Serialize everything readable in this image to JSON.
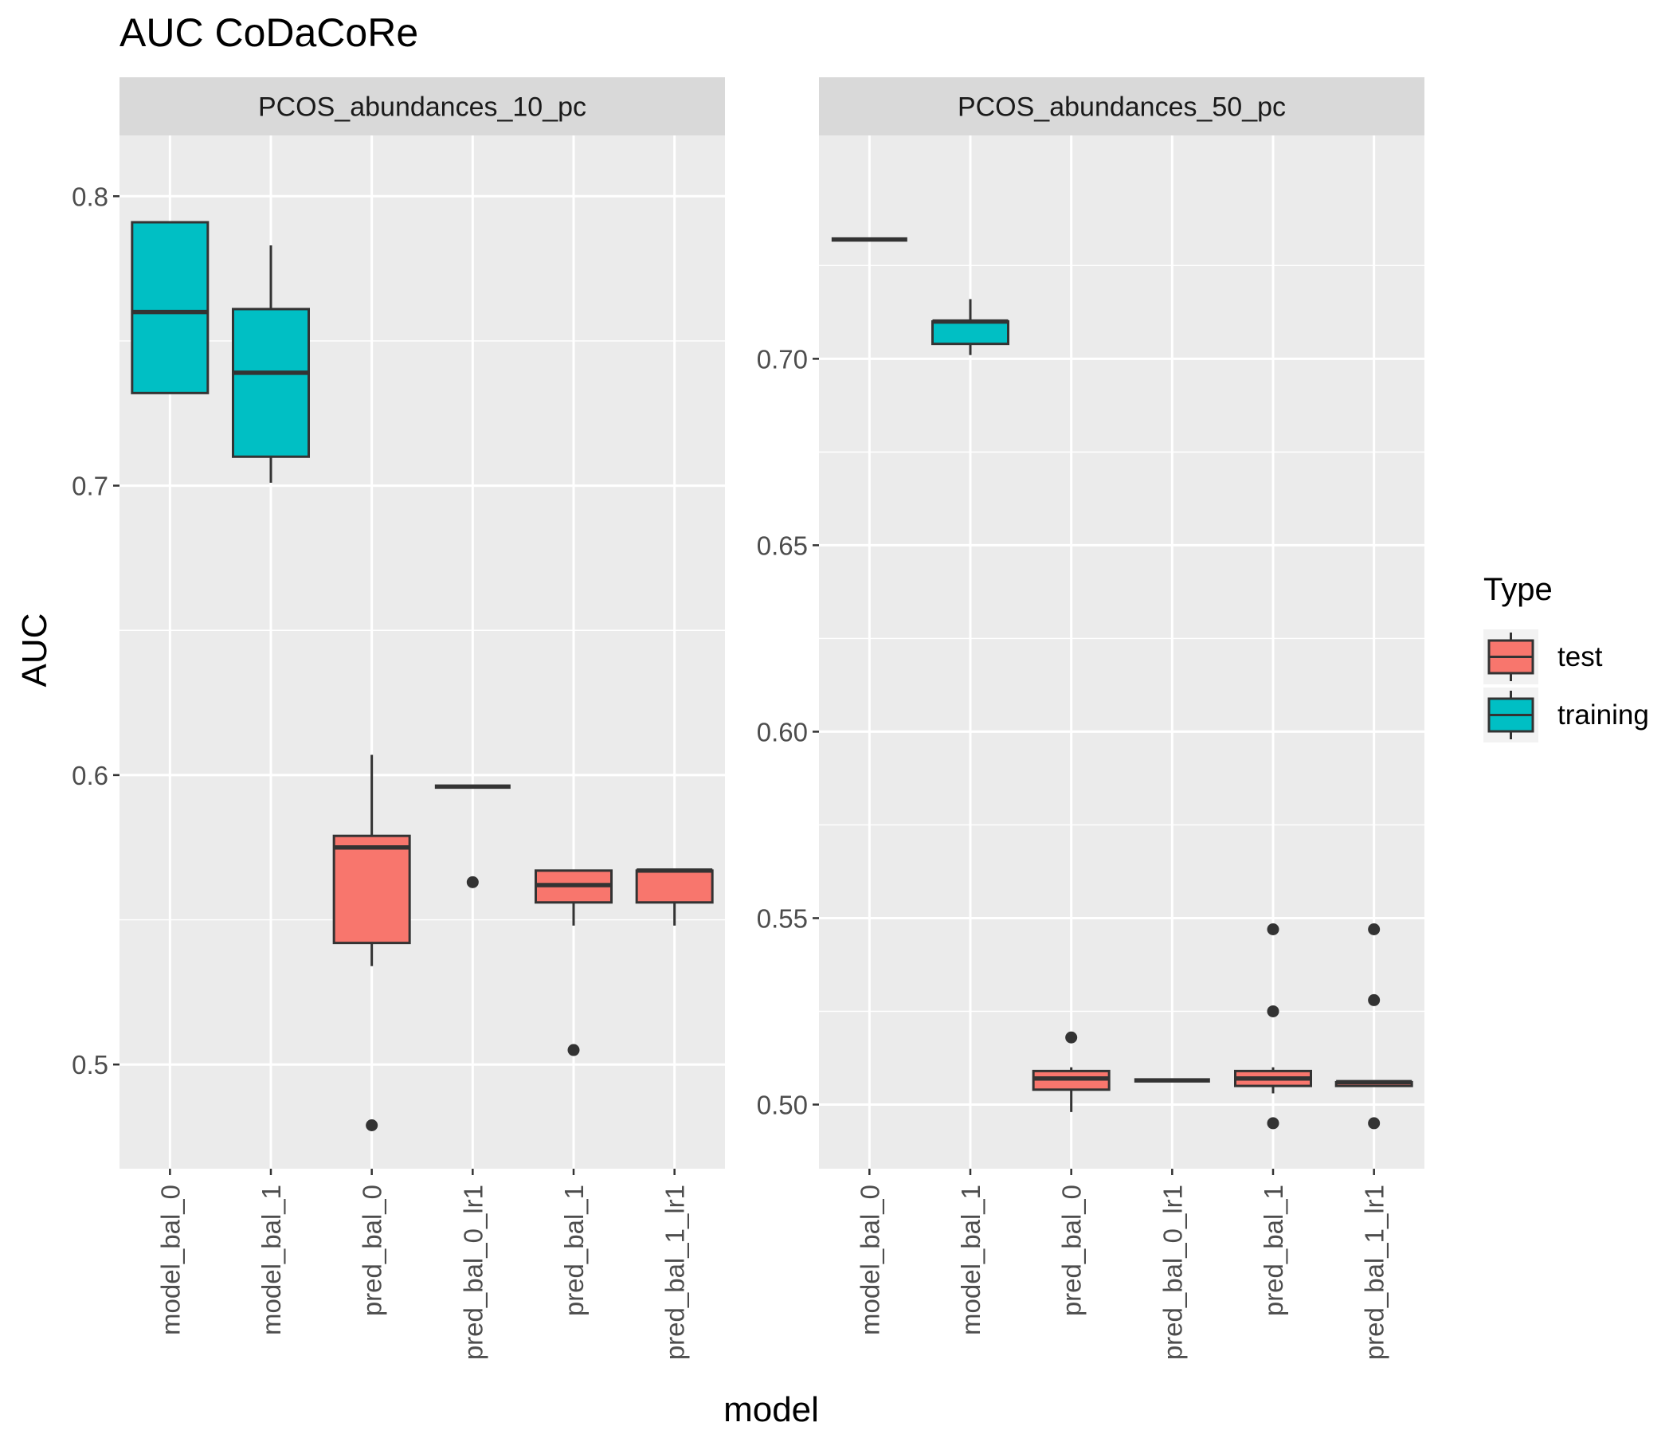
{
  "chart_data": {
    "type": "boxplot",
    "title": "AUC CoDaCoRe",
    "xlabel": "model",
    "ylabel": "AUC",
    "grid": true,
    "legend": {
      "title": "Type",
      "position": "right",
      "entries": [
        {
          "name": "test",
          "color": "#F8766D"
        },
        {
          "name": "training",
          "color": "#00BFC4"
        }
      ]
    },
    "categories": [
      "model_bal_0",
      "model_bal_1",
      "pred_bal_0",
      "pred_bal_0_lr1",
      "pred_bal_1",
      "pred_bal_1_lr1"
    ],
    "panels": [
      {
        "strip": "PCOS_abundances_10_pc",
        "ylim": [
          0.464,
          0.821
        ],
        "yticks": [
          0.5,
          0.6,
          0.7,
          0.8
        ],
        "ytick_labels": [
          "0.5",
          "0.6",
          "0.7",
          "0.8"
        ],
        "boxes": [
          {
            "category": "model_bal_0",
            "type": "training",
            "lower": 0.732,
            "q1": 0.732,
            "median": 0.76,
            "q3": 0.791,
            "upper": 0.791,
            "outliers": []
          },
          {
            "category": "model_bal_1",
            "type": "training",
            "lower": 0.701,
            "q1": 0.71,
            "median": 0.739,
            "q3": 0.761,
            "upper": 0.783,
            "outliers": []
          },
          {
            "category": "pred_bal_0",
            "type": "test",
            "lower": 0.534,
            "q1": 0.542,
            "median": 0.575,
            "q3": 0.579,
            "upper": 0.607,
            "outliers": [
              0.479
            ]
          },
          {
            "category": "pred_bal_0_lr1",
            "type": "test",
            "lower": 0.596,
            "q1": 0.596,
            "median": 0.596,
            "q3": 0.596,
            "upper": 0.596,
            "outliers": [
              0.563
            ]
          },
          {
            "category": "pred_bal_1",
            "type": "test",
            "lower": 0.548,
            "q1": 0.556,
            "median": 0.562,
            "q3": 0.567,
            "upper": 0.567,
            "outliers": [
              0.505
            ]
          },
          {
            "category": "pred_bal_1_lr1",
            "type": "test",
            "lower": 0.548,
            "q1": 0.556,
            "median": 0.567,
            "q3": 0.567,
            "upper": 0.567,
            "outliers": []
          }
        ]
      },
      {
        "strip": "PCOS_abundances_50_pc",
        "ylim": [
          0.4828,
          0.7599
        ],
        "yticks": [
          0.5,
          0.55,
          0.6,
          0.65,
          0.7
        ],
        "ytick_labels": [
          "0.50",
          "0.55",
          "0.60",
          "0.65",
          "0.70"
        ],
        "boxes": [
          {
            "category": "model_bal_0",
            "type": "training",
            "lower": 0.732,
            "q1": 0.732,
            "median": 0.732,
            "q3": 0.732,
            "upper": 0.732,
            "outliers": []
          },
          {
            "category": "model_bal_1",
            "type": "training",
            "lower": 0.701,
            "q1": 0.704,
            "median": 0.71,
            "q3": 0.71,
            "upper": 0.716,
            "outliers": []
          },
          {
            "category": "pred_bal_0",
            "type": "test",
            "lower": 0.498,
            "q1": 0.504,
            "median": 0.507,
            "q3": 0.509,
            "upper": 0.51,
            "outliers": [
              0.518
            ]
          },
          {
            "category": "pred_bal_0_lr1",
            "type": "test",
            "lower": 0.5065,
            "q1": 0.5065,
            "median": 0.5065,
            "q3": 0.5065,
            "upper": 0.5065,
            "outliers": []
          },
          {
            "category": "pred_bal_1",
            "type": "test",
            "lower": 0.503,
            "q1": 0.505,
            "median": 0.507,
            "q3": 0.509,
            "upper": 0.51,
            "outliers": [
              0.547,
              0.525,
              0.495
            ]
          },
          {
            "category": "pred_bal_1_lr1",
            "type": "test",
            "lower": 0.505,
            "q1": 0.505,
            "median": 0.506,
            "q3": 0.506,
            "upper": 0.506,
            "outliers": [
              0.547,
              0.528,
              0.495
            ]
          }
        ]
      }
    ]
  }
}
